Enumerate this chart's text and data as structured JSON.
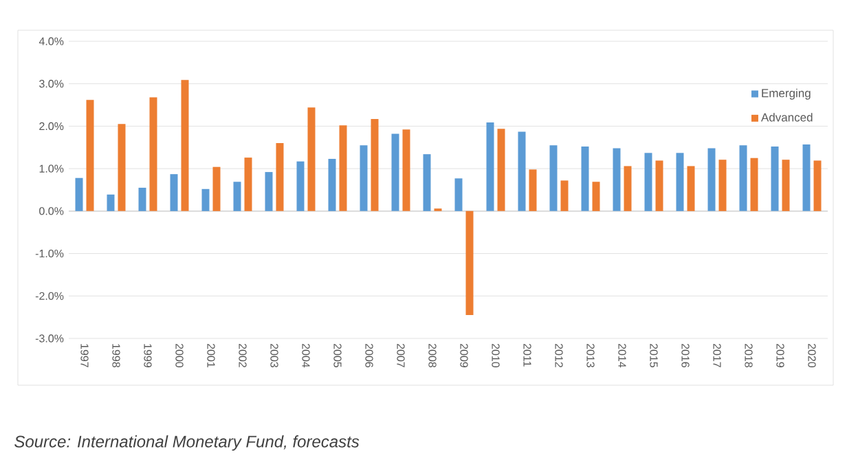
{
  "chart_data": {
    "type": "bar",
    "categories": [
      "1997",
      "1998",
      "1999",
      "2000",
      "2001",
      "2002",
      "2003",
      "2004",
      "2005",
      "2006",
      "2007",
      "2008",
      "2009",
      "2010",
      "2011",
      "2012",
      "2013",
      "2014",
      "2015",
      "2016",
      "2017",
      "2018",
      "2019",
      "2020"
    ],
    "series": [
      {
        "name": "Emerging",
        "color": "#5b9bd5",
        "values": [
          0.78,
          0.39,
          0.55,
          0.87,
          0.52,
          0.69,
          0.92,
          1.17,
          1.23,
          1.55,
          1.82,
          1.34,
          0.77,
          2.09,
          1.87,
          1.55,
          1.52,
          1.48,
          1.37,
          1.37,
          1.48,
          1.55,
          1.52,
          1.57
        ]
      },
      {
        "name": "Advanced",
        "color": "#ed7d31",
        "values": [
          2.62,
          2.05,
          2.68,
          3.09,
          1.04,
          1.26,
          1.6,
          2.44,
          2.02,
          2.17,
          1.92,
          0.06,
          -2.45,
          1.94,
          0.98,
          0.72,
          0.69,
          1.06,
          1.19,
          1.06,
          1.21,
          1.25,
          1.21,
          1.19
        ]
      }
    ],
    "ylim": [
      -3,
      4
    ],
    "yticks": [
      {
        "value": -3,
        "label": "-3.0%"
      },
      {
        "value": -2,
        "label": "-2.0%"
      },
      {
        "value": -1,
        "label": "-1.0%"
      },
      {
        "value": 0,
        "label": "0.0%"
      },
      {
        "value": 1,
        "label": "1.0%"
      },
      {
        "value": 2,
        "label": "2.0%"
      },
      {
        "value": 3,
        "label": "3.0%"
      },
      {
        "value": 4,
        "label": "4.0%"
      }
    ],
    "grid": "y",
    "legend": "top right",
    "annotations": [
      "Source: International Monetary Fund, forecasts"
    ]
  }
}
